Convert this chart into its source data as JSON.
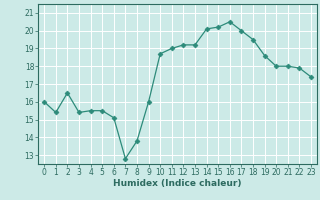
{
  "x": [
    0,
    1,
    2,
    3,
    4,
    5,
    6,
    7,
    8,
    9,
    10,
    11,
    12,
    13,
    14,
    15,
    16,
    17,
    18,
    19,
    20,
    21,
    22,
    23
  ],
  "y": [
    16.0,
    15.4,
    16.5,
    15.4,
    15.5,
    15.5,
    15.1,
    12.8,
    13.8,
    16.0,
    18.7,
    19.0,
    19.2,
    19.2,
    20.1,
    20.2,
    20.5,
    20.0,
    19.5,
    18.6,
    18.0,
    18.0,
    17.9,
    17.4
  ],
  "line_color": "#2d8b7a",
  "marker": "D",
  "marker_size": 2.5,
  "bg_color": "#cceae7",
  "grid_color": "#f0f0f0",
  "xlabel": "Humidex (Indice chaleur)",
  "xlim": [
    -0.5,
    23.5
  ],
  "ylim": [
    12.5,
    21.5
  ],
  "yticks": [
    13,
    14,
    15,
    16,
    17,
    18,
    19,
    20,
    21
  ],
  "xticks": [
    0,
    1,
    2,
    3,
    4,
    5,
    6,
    7,
    8,
    9,
    10,
    11,
    12,
    13,
    14,
    15,
    16,
    17,
    18,
    19,
    20,
    21,
    22,
    23
  ],
  "tick_color": "#2d6b60",
  "label_color": "#2d6b60",
  "axis_color": "#2d6b60",
  "grid_major_color": "#e8e8e8"
}
